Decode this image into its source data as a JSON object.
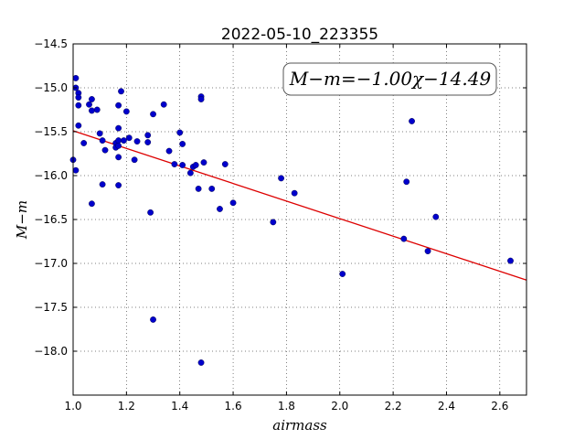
{
  "chart_data": {
    "type": "scatter",
    "title": "2022-05-10_223355",
    "xlabel": "airmass",
    "ylabel": "M−m",
    "xlim": [
      1.0,
      2.7
    ],
    "ylim": [
      -18.5,
      -14.5
    ],
    "y_inverted": true,
    "grid": true,
    "x_ticks": [
      "1.0",
      "1.2",
      "1.4",
      "1.6",
      "1.8",
      "2.0",
      "2.2",
      "2.4",
      "2.6"
    ],
    "y_ticks": [
      "−14.5",
      "−15.0",
      "−15.5",
      "−16.0",
      "−16.5",
      "−17.0",
      "−17.5",
      "−18.0"
    ],
    "annotation": "M−m=−1.00χ−14.49",
    "fit": {
      "slope": -1.0,
      "intercept": -14.49,
      "color": "#dd0000"
    },
    "series": [
      {
        "color": "#0000cc",
        "points": [
          [
            1.0,
            -15.82
          ],
          [
            1.01,
            -15.94
          ],
          [
            1.01,
            -15.0
          ],
          [
            1.01,
            -14.89
          ],
          [
            1.02,
            -15.06
          ],
          [
            1.02,
            -15.11
          ],
          [
            1.02,
            -15.2
          ],
          [
            1.02,
            -15.43
          ],
          [
            1.04,
            -15.63
          ],
          [
            1.06,
            -15.19
          ],
          [
            1.07,
            -15.13
          ],
          [
            1.07,
            -15.26
          ],
          [
            1.07,
            -16.32
          ],
          [
            1.09,
            -15.25
          ],
          [
            1.1,
            -15.52
          ],
          [
            1.11,
            -15.6
          ],
          [
            1.11,
            -16.1
          ],
          [
            1.12,
            -15.71
          ],
          [
            1.16,
            -15.63
          ],
          [
            1.16,
            -15.68
          ],
          [
            1.17,
            -15.6
          ],
          [
            1.17,
            -15.66
          ],
          [
            1.17,
            -15.79
          ],
          [
            1.17,
            -15.2
          ],
          [
            1.17,
            -15.46
          ],
          [
            1.17,
            -16.11
          ],
          [
            1.18,
            -15.04
          ],
          [
            1.19,
            -15.6
          ],
          [
            1.2,
            -15.27
          ],
          [
            1.21,
            -15.57
          ],
          [
            1.23,
            -15.82
          ],
          [
            1.24,
            -15.61
          ],
          [
            1.28,
            -15.62
          ],
          [
            1.28,
            -15.54
          ],
          [
            1.29,
            -16.42
          ],
          [
            1.3,
            -15.3
          ],
          [
            1.3,
            -17.64
          ],
          [
            1.34,
            -15.19
          ],
          [
            1.36,
            -15.72
          ],
          [
            1.38,
            -15.87
          ],
          [
            1.4,
            -15.51
          ],
          [
            1.41,
            -15.64
          ],
          [
            1.41,
            -15.88
          ],
          [
            1.44,
            -15.97
          ],
          [
            1.45,
            -15.9
          ],
          [
            1.46,
            -15.88
          ],
          [
            1.47,
            -16.15
          ],
          [
            1.48,
            -15.1
          ],
          [
            1.48,
            -15.13
          ],
          [
            1.48,
            -18.13
          ],
          [
            1.49,
            -15.85
          ],
          [
            1.52,
            -16.15
          ],
          [
            1.55,
            -16.38
          ],
          [
            1.57,
            -15.87
          ],
          [
            1.6,
            -16.31
          ],
          [
            1.75,
            -16.53
          ],
          [
            1.78,
            -16.03
          ],
          [
            1.83,
            -16.2
          ],
          [
            2.01,
            -17.12
          ],
          [
            2.24,
            -16.72
          ],
          [
            2.25,
            -16.07
          ],
          [
            2.27,
            -15.38
          ],
          [
            2.33,
            -16.86
          ],
          [
            2.36,
            -16.47
          ],
          [
            2.64,
            -16.97
          ]
        ]
      }
    ]
  }
}
